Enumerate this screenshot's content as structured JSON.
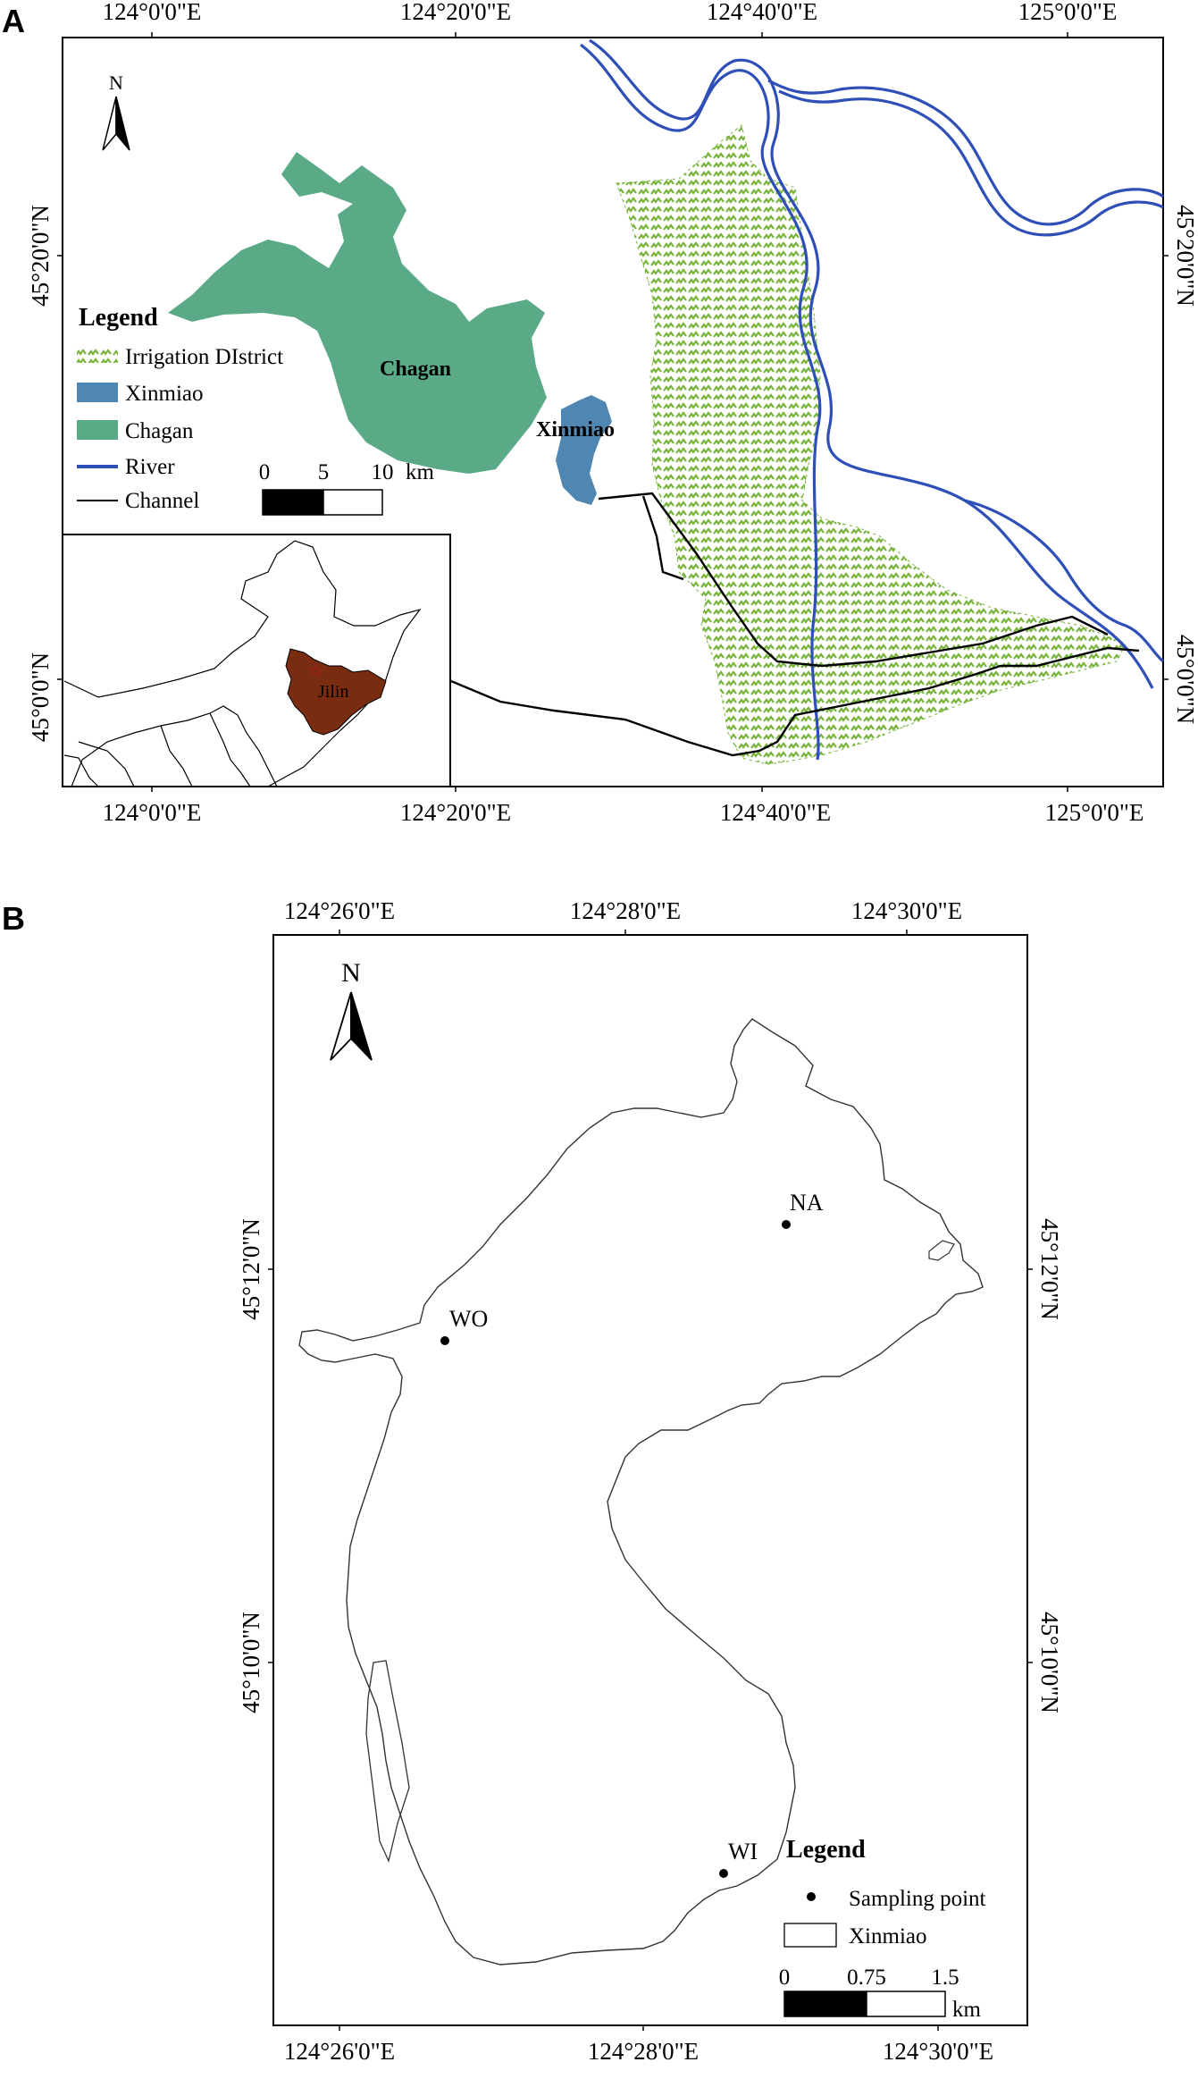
{
  "panel_a": {
    "letter": "A",
    "lon_ticks_top": [
      "124°0'0\"E",
      "124°20'0\"E",
      "124°40'0\"E",
      "125°0'0\"E"
    ],
    "lon_ticks_bottom": [
      "124°0'0\"E",
      "124°20'0\"E",
      "124°40'0\"E",
      "125°0'0\"E"
    ],
    "lat_ticks_left": [
      "45°20'0\"N",
      "45°0'0\"N"
    ],
    "lat_ticks_right": [
      "45°20'0\"N",
      "45°0'0\"N"
    ],
    "north": "N",
    "legend": {
      "title": "Legend",
      "items": [
        "Irrigation DIstrict",
        "Xinmiao",
        "Chagan",
        "River",
        "Channel"
      ]
    },
    "scale": {
      "ticks": [
        "0",
        "5",
        "10"
      ],
      "unit": "km"
    },
    "labels": {
      "chagan": "Chagan",
      "xinmiao": "Xinmiao",
      "jilin": "Jilin"
    },
    "colors": {
      "irrigation": "#78b43c",
      "xinmiao": "#4f86b2",
      "chagan": "#5aaa88",
      "river": "#2f4fb8",
      "channel": "#000000",
      "jilin": "#7a2c10"
    }
  },
  "panel_b": {
    "letter": "B",
    "lon_ticks_top": [
      "124°26'0\"E",
      "124°28'0\"E",
      "124°30'0\"E"
    ],
    "lon_ticks_bottom": [
      "124°26'0\"E",
      "124°28'0\"E",
      "124°30'0\"E"
    ],
    "lat_ticks_left": [
      "45°12'0\"N",
      "45°10'0\"N"
    ],
    "lat_ticks_right": [
      "45°12'0\"N",
      "45°10'0\"N"
    ],
    "north": "N",
    "points": [
      "NA",
      "WO",
      "WI"
    ],
    "legend": {
      "title": "Legend",
      "items": [
        "Sampling point",
        "Xinmiao"
      ]
    },
    "scale": {
      "ticks": [
        "0",
        "0.75",
        "1.5"
      ],
      "unit": "km"
    }
  }
}
